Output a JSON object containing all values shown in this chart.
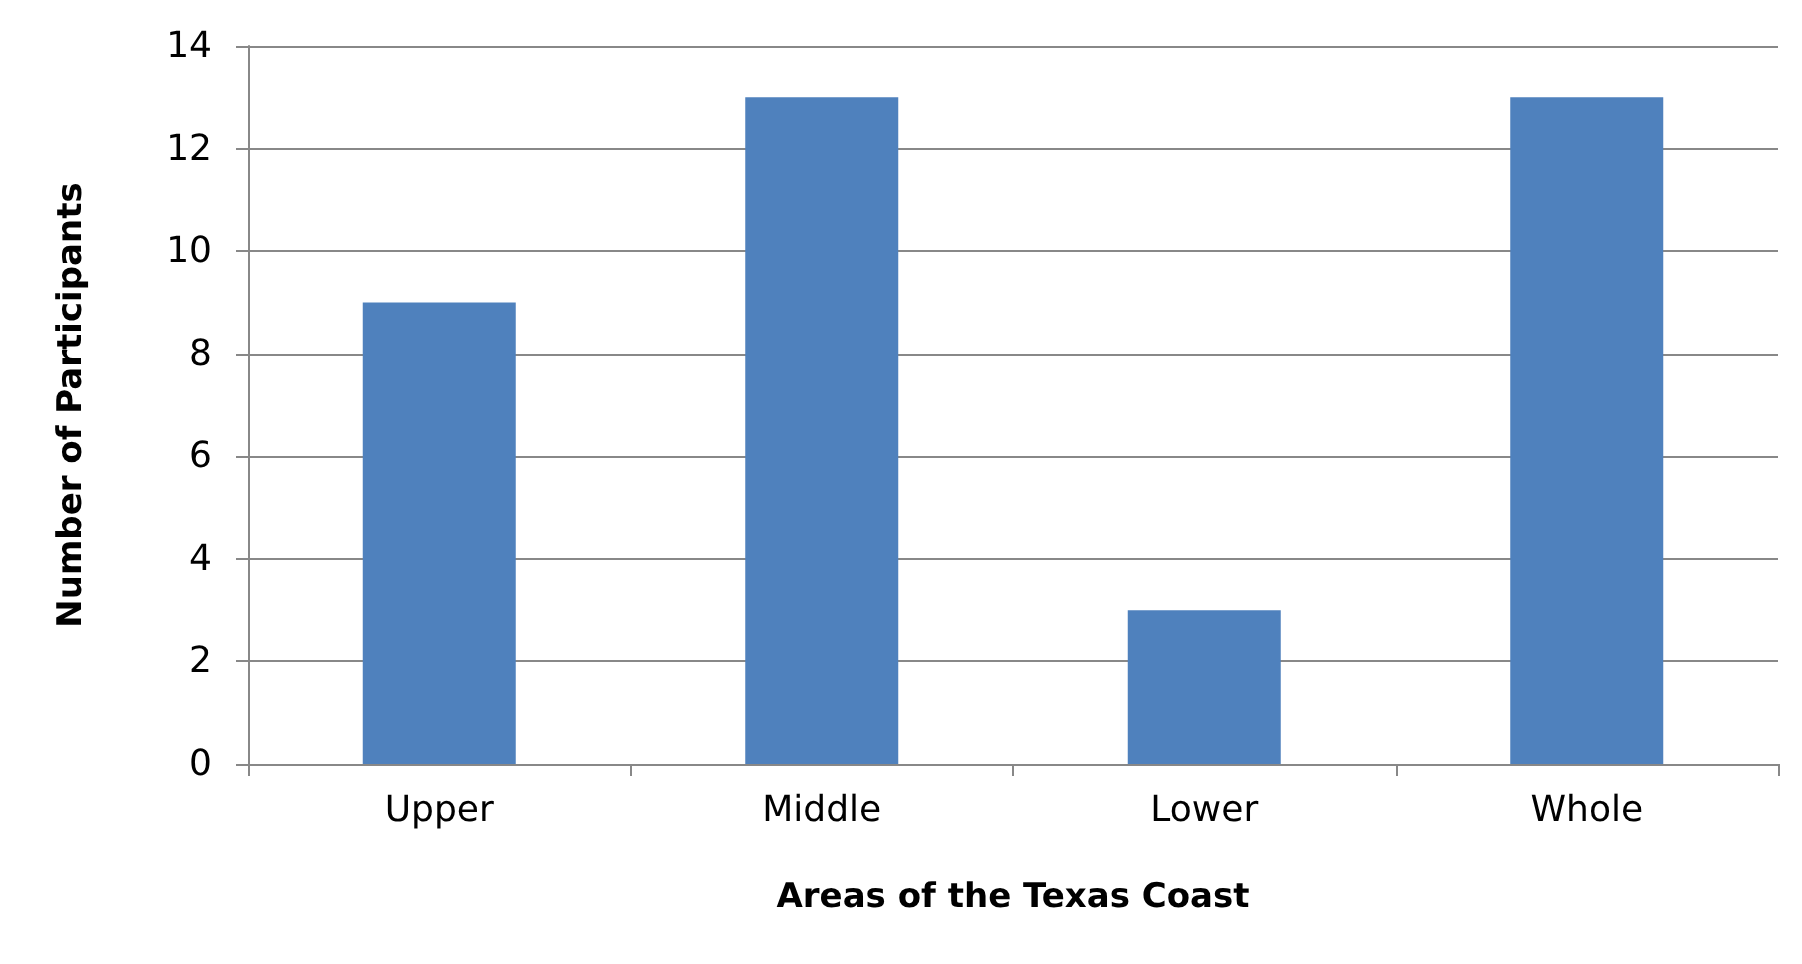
{
  "chart_data": {
    "type": "bar",
    "xlabel": "Areas of the Texas Coast",
    "ylabel": "Number of Participants",
    "categories": [
      "Upper",
      "Middle",
      "Lower",
      "Whole"
    ],
    "values": [
      9,
      13,
      3,
      13
    ],
    "color": "#4f81bd",
    "ylim": [
      0,
      14
    ],
    "yticks": [
      0,
      2,
      4,
      6,
      8,
      10,
      12,
      14
    ],
    "grid": "y"
  }
}
